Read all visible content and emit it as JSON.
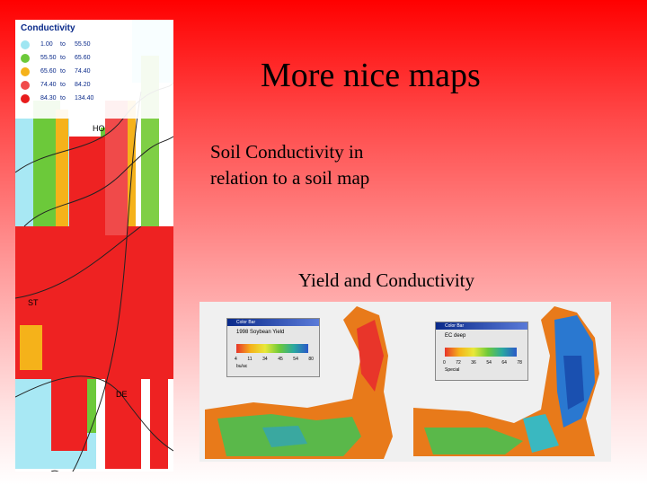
{
  "slide": {
    "title": "More nice maps",
    "body_line1": "Soil Conductivity in",
    "body_line2": "relation to a soil map",
    "subcaption": "Yield and Conductivity"
  },
  "conductivity_map": {
    "legend_title": "Conductivity",
    "legend": [
      {
        "low": "1.00",
        "sep": "to",
        "high": "55.50",
        "color": "#9fe6f2"
      },
      {
        "low": "55.50",
        "sep": "to",
        "high": "65.60",
        "color": "#6cc93a"
      },
      {
        "low": "65.60",
        "sep": "to",
        "high": "74.40",
        "color": "#f5b21a"
      },
      {
        "low": "74.40",
        "sep": "to",
        "high": "84.20",
        "color": "#f04a4a"
      },
      {
        "low": "84.30",
        "sep": "to",
        "high": "134.40",
        "color": "#e81c1c"
      }
    ],
    "soil_labels": [
      "HO",
      "ST",
      "DE"
    ]
  },
  "yield_panel": {
    "left_window": {
      "title": "Color Bar",
      "heading": "1998 Soybean Yield",
      "ticks": [
        "4",
        "11",
        "34",
        "45",
        "54",
        "80"
      ],
      "unit": "bu/ac"
    },
    "right_window": {
      "title": "Color Bar",
      "heading": "EC deep",
      "ticks": [
        "0",
        "72",
        "36",
        "54",
        "64",
        "78"
      ],
      "unit": "Special"
    }
  }
}
